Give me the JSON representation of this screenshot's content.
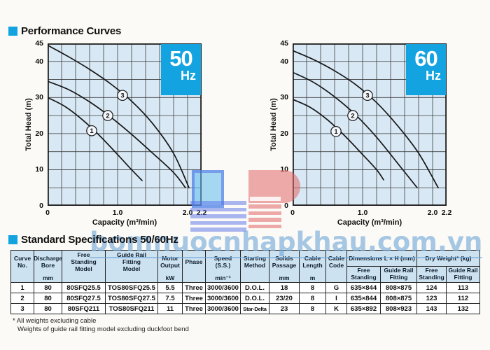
{
  "headings": {
    "performance": "Performance Curves",
    "specs": "Standard Specifications 50/60Hz"
  },
  "watermark": {
    "text": "bomnuocnhapkhau.com.vn"
  },
  "colors": {
    "accent": "#12a3e0",
    "chart_bg": "#d8e8f4",
    "grid": "#3d3d3d",
    "curve": "#161616",
    "table_header_bg": "#cde2f1",
    "watermark_blue": "#70a8d8",
    "logo_blue": "#5870e8",
    "logo_red": "#e26666"
  },
  "chart_data": [
    {
      "type": "line",
      "title": "50 Hz",
      "badge": {
        "big": "50",
        "small": "Hz"
      },
      "xlabel": "Capacity (m³/min)",
      "ylabel": "Total Head (m)",
      "xlim": [
        0,
        2.2
      ],
      "ylim": [
        0,
        45
      ],
      "x_grid_step": 0.2,
      "y_grid_step": 5,
      "grid": true,
      "x_ticks": [
        [
          0,
          "0"
        ],
        [
          1.0,
          "1.0"
        ],
        [
          2.0,
          "2.0"
        ],
        [
          2.2,
          "2.2"
        ]
      ],
      "y_ticks": [
        [
          0,
          "0"
        ],
        [
          10,
          "10"
        ],
        [
          20,
          "20"
        ],
        [
          30,
          "30"
        ],
        [
          40,
          "40"
        ],
        [
          45,
          "45"
        ]
      ],
      "series": [
        {
          "name": "1",
          "label_at": [
            0.63,
            20.8
          ],
          "points": [
            [
              0,
              30
            ],
            [
              0.25,
              27.5
            ],
            [
              0.5,
              23.8
            ],
            [
              0.75,
              19.3
            ],
            [
              1.0,
              14.2
            ],
            [
              1.2,
              10
            ],
            [
              1.35,
              7
            ]
          ]
        },
        {
          "name": "2",
          "label_at": [
            0.86,
            25
          ],
          "points": [
            [
              0,
              34.5
            ],
            [
              0.3,
              32.2
            ],
            [
              0.6,
              28.8
            ],
            [
              0.9,
              24.6
            ],
            [
              1.2,
              19.8
            ],
            [
              1.5,
              14.6
            ],
            [
              1.8,
              9.2
            ],
            [
              1.97,
              5
            ]
          ]
        },
        {
          "name": "3",
          "label_at": [
            1.07,
            30.6
          ],
          "points": [
            [
              0,
              44.5
            ],
            [
              0.3,
              41.3
            ],
            [
              0.6,
              37.8
            ],
            [
              0.9,
              33.8
            ],
            [
              1.2,
              29
            ],
            [
              1.5,
              22.8
            ],
            [
              1.8,
              14.5
            ],
            [
              2.02,
              5
            ]
          ]
        }
      ]
    },
    {
      "type": "line",
      "title": "60 Hz",
      "badge": {
        "big": "60",
        "small": "Hz"
      },
      "xlabel": "Capacity (m³/min)",
      "ylabel": "Total Head (m)",
      "xlim": [
        0,
        2.2
      ],
      "ylim": [
        0,
        45
      ],
      "x_grid_step": 0.2,
      "y_grid_step": 5,
      "grid": true,
      "x_ticks": [
        [
          0,
          "0"
        ],
        [
          1.0,
          "1.0"
        ],
        [
          2.0,
          "2.0"
        ],
        [
          2.2,
          "2.2"
        ]
      ],
      "y_ticks": [
        [
          0,
          "0"
        ],
        [
          10,
          "10"
        ],
        [
          20,
          "20"
        ],
        [
          30,
          "30"
        ],
        [
          40,
          "40"
        ],
        [
          45,
          "45"
        ]
      ],
      "series": [
        {
          "name": "1",
          "label_at": [
            0.62,
            20.6
          ],
          "points": [
            [
              0,
              29.5
            ],
            [
              0.25,
              27.3
            ],
            [
              0.5,
              23.8
            ],
            [
              0.75,
              19.3
            ],
            [
              1.0,
              14.2
            ],
            [
              1.2,
              10
            ],
            [
              1.3,
              7.2
            ]
          ]
        },
        {
          "name": "2",
          "label_at": [
            0.86,
            25
          ],
          "points": [
            [
              0,
              37
            ],
            [
              0.3,
              34.2
            ],
            [
              0.6,
              30.2
            ],
            [
              0.9,
              25.2
            ],
            [
              1.2,
              19
            ],
            [
              1.5,
              11.8
            ],
            [
              1.78,
              5
            ]
          ]
        },
        {
          "name": "3",
          "label_at": [
            1.07,
            30.6
          ],
          "points": [
            [
              0,
              43
            ],
            [
              0.3,
              40.5
            ],
            [
              0.6,
              37.4
            ],
            [
              0.9,
              33.6
            ],
            [
              1.2,
              28.6
            ],
            [
              1.5,
              22.2
            ],
            [
              1.8,
              14.6
            ],
            [
              2.08,
              5
            ]
          ]
        }
      ]
    }
  ],
  "table": {
    "columns": [
      {
        "label": "Curve\nNo.",
        "unit": ""
      },
      {
        "label": "Discharge\nBore",
        "unit": "mm"
      },
      {
        "label": "Free\nStanding\nModel",
        "unit": ""
      },
      {
        "label": "Guide Rail\nFitting\nModel",
        "unit": ""
      },
      {
        "label": "Motor\nOutput",
        "unit": "kW"
      },
      {
        "label": "Phase",
        "unit": ""
      },
      {
        "label": "Speed\n(S.S.)",
        "unit": "min⁻¹"
      },
      {
        "label": "Starting\nMethod",
        "unit": ""
      },
      {
        "label": "Solids\nPassage",
        "unit": "mm"
      },
      {
        "label": "Cable\nLength",
        "unit": "m"
      },
      {
        "label": "Cable\nCode",
        "unit": ""
      }
    ],
    "groups": [
      {
        "label": "Dimensions L × H (mm)",
        "subs": [
          "Free\nStanding",
          "Guide Rail\nFitting"
        ]
      },
      {
        "label": "Dry Weight* (kg)",
        "subs": [
          "Free\nStanding",
          "Guide Rail\nFitting"
        ]
      }
    ],
    "rows": [
      [
        "1",
        "80",
        "80SFQ25.5",
        "TOS80SFQ25.5",
        "5.5",
        "Three",
        "3000/3600",
        "D.O.L.",
        "18",
        "8",
        "G",
        "635×844",
        "808×875",
        "124",
        "113"
      ],
      [
        "2",
        "80",
        "80SFQ27.5",
        "TOS80SFQ27.5",
        "7.5",
        "Three",
        "3000/3600",
        "D.O.L.",
        "23/20",
        "8",
        "I",
        "635×844",
        "808×875",
        "123",
        "112"
      ],
      [
        "3",
        "80",
        "80SFQ211",
        "TOS80SFQ211",
        "11",
        "Three",
        "3000/3600",
        "Star-Delta",
        "23",
        "8",
        "K",
        "635×892",
        "808×923",
        "143",
        "132"
      ]
    ]
  },
  "footnotes": {
    "line1": "* All weights excluding cable",
    "line2": "Weights of guide rail fitting model excluding duckfoot bend"
  }
}
